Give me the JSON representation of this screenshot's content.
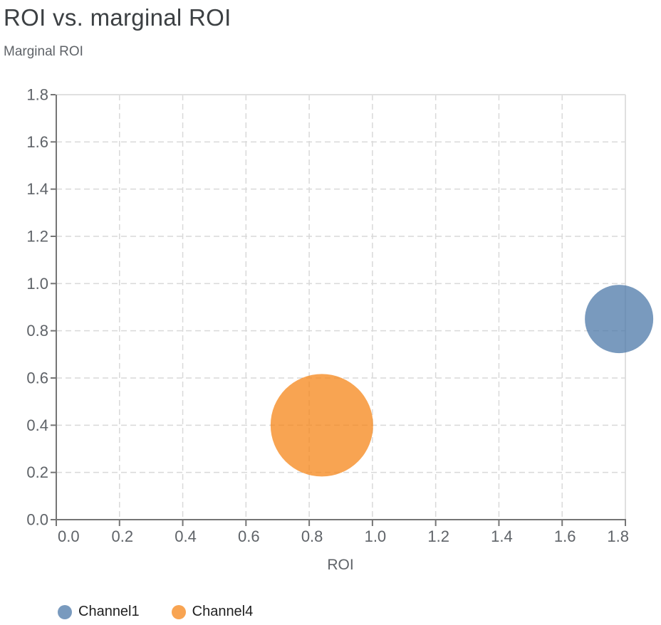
{
  "header": {
    "title": "ROI vs. marginal ROI",
    "subtitle": "Marginal ROI"
  },
  "chart_data": {
    "type": "scatter",
    "title": "ROI vs. marginal ROI",
    "xlabel": "ROI",
    "ylabel": "Marginal ROI",
    "xlim": [
      0.0,
      1.8
    ],
    "ylim": [
      0.0,
      1.8
    ],
    "xticks": [
      0.0,
      0.2,
      0.4,
      0.6,
      0.8,
      1.0,
      1.2,
      1.4,
      1.6,
      1.8
    ],
    "yticks": [
      0.0,
      0.2,
      0.4,
      0.6,
      0.8,
      1.0,
      1.2,
      1.4,
      1.6,
      1.8
    ],
    "grid": "dashed",
    "legend_position": "bottom-left",
    "marker_opacity": 0.75,
    "series": [
      {
        "name": "Channel1",
        "color": "#4c78a8",
        "points": [
          {
            "x": 1.78,
            "y": 0.85,
            "radius_px": 48
          }
        ]
      },
      {
        "name": "Channel4",
        "color": "#f58518",
        "points": [
          {
            "x": 0.84,
            "y": 0.4,
            "radius_px": 72
          }
        ]
      }
    ]
  },
  "colors": {
    "title_text": "#3c4043",
    "subtitle_text": "#5f6368",
    "axis_line": "#757575",
    "tick_label": "#5f6368",
    "grid_line": "#d9d9d9",
    "plot_border": "#e0e0e0",
    "legend_text": "#1f1f1f"
  }
}
